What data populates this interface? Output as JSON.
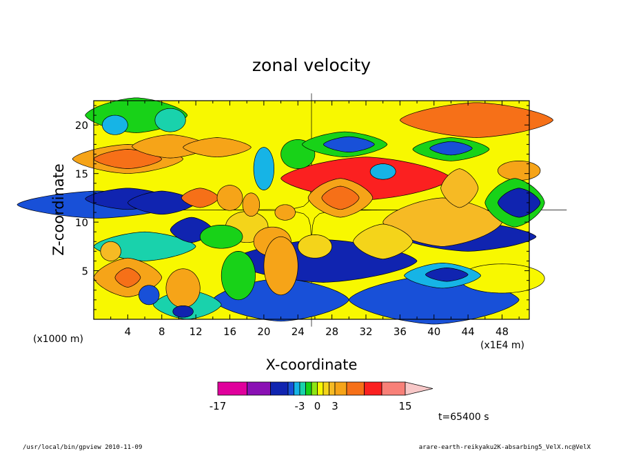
{
  "chart_data": {
    "type": "heatmap",
    "title": "zonal velocity",
    "xlabel": "X-coordinate",
    "ylabel": "Z-coordinate",
    "y_unit": "(x1000 m)",
    "x_unit": "(x1E4 m)",
    "x_ticks": [
      "4",
      "8",
      "12",
      "16",
      "20",
      "24",
      "28",
      "32",
      "36",
      "40",
      "44",
      "48"
    ],
    "y_ticks": [
      "5",
      "10",
      "15",
      "20"
    ],
    "xlim": [
      0,
      51.2
    ],
    "ylim": [
      0,
      22.5
    ],
    "colorbar": {
      "tick_labels": [
        "-17",
        "-3",
        "0",
        "3",
        "15"
      ],
      "levels": [
        -17,
        -12,
        -8,
        -5,
        -4,
        -3,
        -2,
        -1,
        0,
        1,
        2,
        3,
        5,
        8,
        11,
        15
      ],
      "colors": [
        "#e0009c",
        "#8a10b4",
        "#1024b0",
        "#1850d8",
        "#16b4e6",
        "#19d2ac",
        "#18d218",
        "#8ee614",
        "#f8f800",
        "#f4d41a",
        "#f6ba24",
        "#f6a418",
        "#f67018",
        "#fb2020",
        "#f88078"
      ]
    },
    "features": [
      {
        "x": 4,
        "z": 12.3,
        "value": -8
      },
      {
        "x": 8,
        "z": 12.0,
        "value": -8
      },
      {
        "x": 11,
        "z": 9.0,
        "value": -6
      },
      {
        "x": 4,
        "z": 16.5,
        "value": 6
      },
      {
        "x": 9,
        "z": 17.8,
        "value": 5
      },
      {
        "x": 12.5,
        "z": 12.5,
        "value": 6
      },
      {
        "x": 29,
        "z": 12.5,
        "value": 6
      },
      {
        "x": 30,
        "z": 18.0,
        "value": -5
      },
      {
        "x": 42,
        "z": 17.5,
        "value": -5
      },
      {
        "x": 34,
        "z": 15.2,
        "value": -4
      },
      {
        "x": 41,
        "z": 4.5,
        "value": -5
      },
      {
        "x": 50,
        "z": 12.0,
        "value": -6
      },
      {
        "x": 40,
        "z": 10.0,
        "value": 2.5
      },
      {
        "x": 4,
        "z": 4.3,
        "value": 5
      }
    ]
  },
  "time_label": "t=65400 s",
  "footer_left": "/usr/local/bin/gpview  2010-11-09",
  "footer_right": "arare-earth-reikyaku2K-absarbing5_VelX.nc@VelX"
}
